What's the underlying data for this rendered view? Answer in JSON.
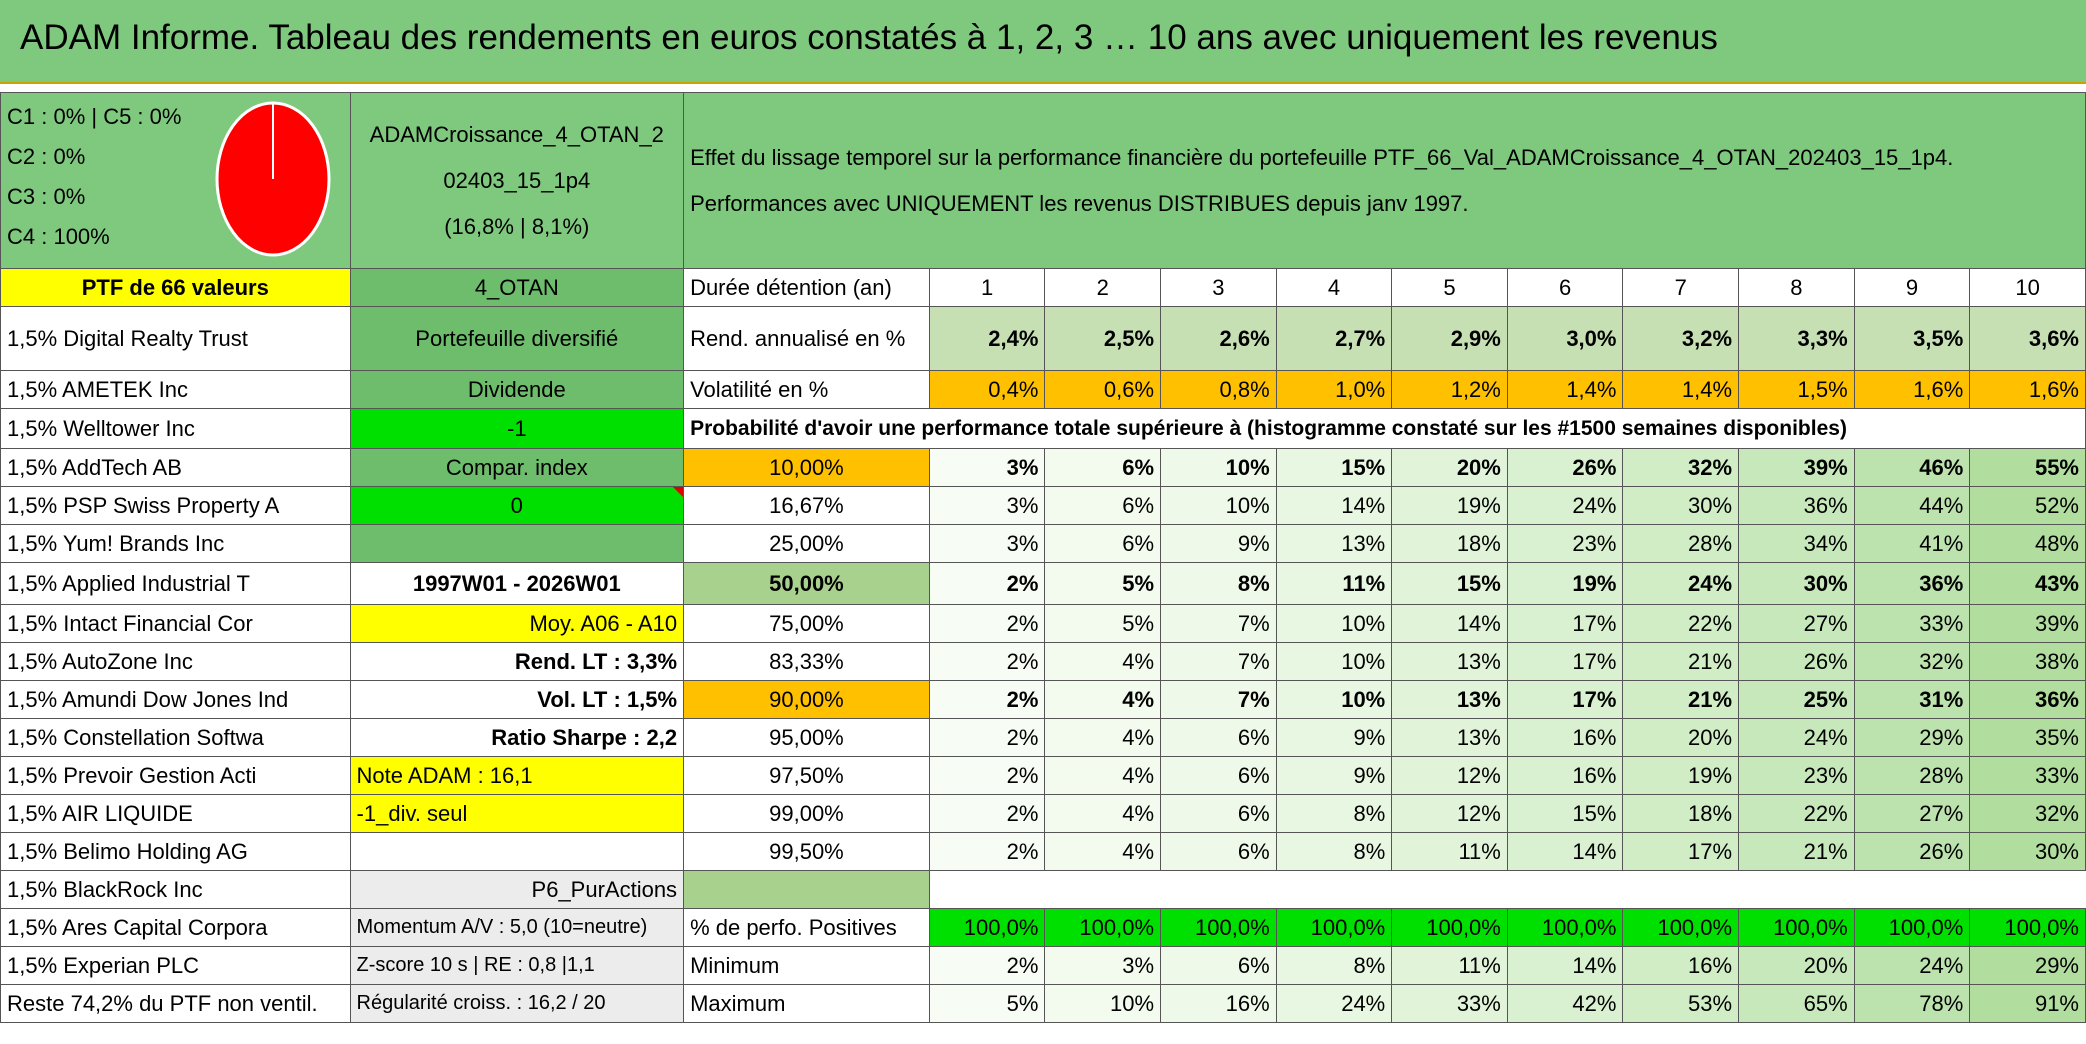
{
  "title": "ADAM Informe. Tableau des rendements en euros constatés à 1, 2, 3 … 10 ans avec uniquement les revenus",
  "legend": [
    "C1 : 0% | C5 : 0%",
    "C2 : 0%",
    "C3 : 0%",
    "C4 : 100%"
  ],
  "pie_color": "#ff0000",
  "portfolio": {
    "name_lines": [
      "ADAMCroissance_4_OTAN_2",
      "02403_15_1p4",
      "(16,8% | 8,1%)"
    ],
    "effect_text": "Effet du lissage temporel sur la performance financière du portefeuille PTF_66_Val_ADAMCroissance_4_OTAN_202403_15_1p4. Performances avec UNIQUEMENT les revenus DISTRIBUES depuis janv 1997.",
    "ptf_label": "PTF de 66 valeurs",
    "code": "4_OTAN"
  },
  "holdings": [
    "1,5% Digital Realty Trust",
    "1,5% AMETEK Inc",
    "1,5% Welltower Inc",
    "1,5% AddTech AB",
    "1,5% PSP Swiss Property A",
    "1,5% Yum! Brands Inc",
    "1,5% Applied Industrial T",
    "1,5% Intact Financial Cor",
    "1,5% AutoZone Inc",
    "1,5% Amundi Dow Jones Ind",
    "1,5% Constellation Softwa",
    "1,5% Prevoir Gestion Acti",
    "1,5% AIR LIQUIDE",
    "1,5% Belimo Holding AG",
    "1,5% BlackRock Inc",
    "1,5% Ares Capital Corpora",
    "1,5% Experian PLC",
    "Reste 74,2% du PTF non ventil."
  ],
  "info": {
    "diversified": "Portefeuille diversifié",
    "dividend": "Dividende",
    "minus1": "-1",
    "compar": "Compar. index",
    "zero": "0",
    "period": "1997W01 - 2026W01",
    "moy": "Moy. A06 - A10",
    "rend_lt": "Rend. LT : 3,3%",
    "vol_lt": "Vol. LT : 1,5%",
    "sharpe": "Ratio Sharpe : 2,2",
    "note": "Note ADAM : 16,1",
    "div_seul": "-1_div. seul",
    "p6": "P6_PurActions",
    "momentum": "Momentum A/V : 5,0 (10=neutre)",
    "zscore": "Z-score 10 s | RE : 0,8 |1,1",
    "regularite": "Régularité croiss. : 16,2 / 20"
  },
  "table": {
    "duree_label": "Durée détention (an)",
    "years": [
      "1",
      "2",
      "3",
      "4",
      "5",
      "6",
      "7",
      "8",
      "9",
      "10"
    ],
    "rend_label": "Rend. annualisé en %",
    "rend": [
      "2,4%",
      "2,5%",
      "2,6%",
      "2,7%",
      "2,9%",
      "3,0%",
      "3,2%",
      "3,3%",
      "3,5%",
      "3,6%"
    ],
    "vol_label": "Volatilité en %",
    "vol": [
      "0,4%",
      "0,6%",
      "0,8%",
      "1,0%",
      "1,2%",
      "1,4%",
      "1,4%",
      "1,5%",
      "1,6%",
      "1,6%"
    ],
    "prob_title": "Probabilité d'avoir une performance totale supérieure à (histogramme constaté sur les #1500 semaines disponibles)",
    "prob_rows": [
      {
        "p": "10,00%",
        "v": [
          "3%",
          "6%",
          "10%",
          "15%",
          "20%",
          "26%",
          "32%",
          "39%",
          "46%",
          "55%"
        ]
      },
      {
        "p": "16,67%",
        "v": [
          "3%",
          "6%",
          "10%",
          "14%",
          "19%",
          "24%",
          "30%",
          "36%",
          "44%",
          "52%"
        ]
      },
      {
        "p": "25,00%",
        "v": [
          "3%",
          "6%",
          "9%",
          "13%",
          "18%",
          "23%",
          "28%",
          "34%",
          "41%",
          "48%"
        ]
      },
      {
        "p": "50,00%",
        "v": [
          "2%",
          "5%",
          "8%",
          "11%",
          "15%",
          "19%",
          "24%",
          "30%",
          "36%",
          "43%"
        ]
      },
      {
        "p": "75,00%",
        "v": [
          "2%",
          "5%",
          "7%",
          "10%",
          "14%",
          "17%",
          "22%",
          "27%",
          "33%",
          "39%"
        ]
      },
      {
        "p": "83,33%",
        "v": [
          "2%",
          "4%",
          "7%",
          "10%",
          "13%",
          "17%",
          "21%",
          "26%",
          "32%",
          "38%"
        ]
      },
      {
        "p": "90,00%",
        "v": [
          "2%",
          "4%",
          "7%",
          "10%",
          "13%",
          "17%",
          "21%",
          "25%",
          "31%",
          "36%"
        ]
      },
      {
        "p": "95,00%",
        "v": [
          "2%",
          "4%",
          "6%",
          "9%",
          "13%",
          "16%",
          "20%",
          "24%",
          "29%",
          "35%"
        ]
      },
      {
        "p": "97,50%",
        "v": [
          "2%",
          "4%",
          "6%",
          "9%",
          "12%",
          "16%",
          "19%",
          "23%",
          "28%",
          "33%"
        ]
      },
      {
        "p": "99,00%",
        "v": [
          "2%",
          "4%",
          "6%",
          "8%",
          "12%",
          "15%",
          "18%",
          "22%",
          "27%",
          "32%"
        ]
      },
      {
        "p": "99,50%",
        "v": [
          "2%",
          "4%",
          "6%",
          "8%",
          "11%",
          "14%",
          "17%",
          "21%",
          "26%",
          "30%"
        ]
      }
    ],
    "pos_label": "% de perfo. Positives",
    "pos": [
      "100,0%",
      "100,0%",
      "100,0%",
      "100,0%",
      "100,0%",
      "100,0%",
      "100,0%",
      "100,0%",
      "100,0%",
      "100,0%"
    ],
    "min_label": "Minimum",
    "min": [
      "2%",
      "3%",
      "6%",
      "8%",
      "11%",
      "14%",
      "16%",
      "20%",
      "24%",
      "29%"
    ],
    "max_label": "Maximum",
    "max": [
      "5%",
      "10%",
      "16%",
      "24%",
      "33%",
      "42%",
      "53%",
      "65%",
      "78%",
      "91%"
    ]
  }
}
